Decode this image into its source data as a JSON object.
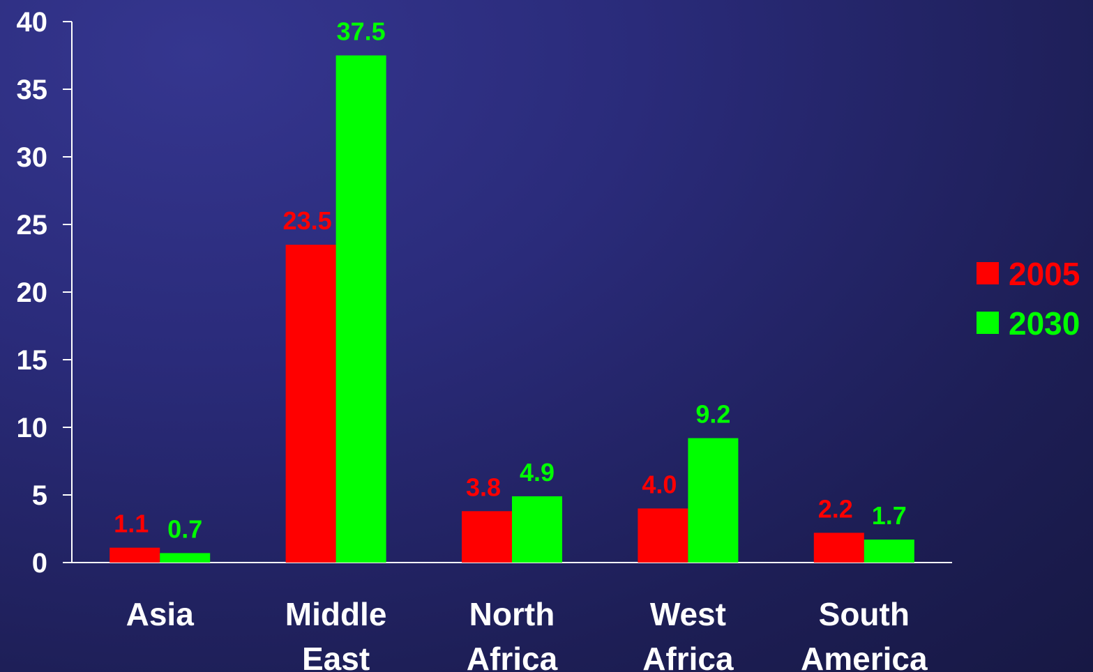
{
  "chart_data": {
    "type": "bar",
    "title": "",
    "xlabel": "",
    "ylabel": "",
    "ylim": [
      0,
      40
    ],
    "yticks": [
      0,
      5,
      10,
      15,
      20,
      25,
      30,
      35,
      40
    ],
    "grid": false,
    "legend_position": "right",
    "categories": [
      [
        "Asia"
      ],
      [
        "Middle",
        "East"
      ],
      [
        "North",
        "Africa"
      ],
      [
        "West",
        "Africa"
      ],
      [
        "South",
        "America"
      ]
    ],
    "series": [
      {
        "name": "2005",
        "color": "#ff0000",
        "values": [
          1.1,
          23.5,
          3.8,
          4.0,
          2.2
        ],
        "labels": [
          "1.1",
          "23.5",
          "3.8",
          "4.0",
          "2.2"
        ]
      },
      {
        "name": "2030",
        "color": "#00ff00",
        "values": [
          0.7,
          37.5,
          4.9,
          9.2,
          1.7
        ],
        "labels": [
          "0.7",
          "37.5",
          "4.9",
          "9.2",
          "1.7"
        ]
      }
    ]
  },
  "colors": {
    "axis": "#ffffff",
    "text": "#ffffff"
  }
}
